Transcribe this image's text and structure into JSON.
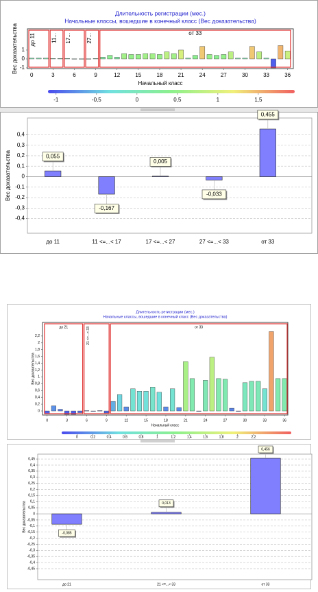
{
  "chart_data": [
    {
      "type": "bar",
      "title": "Длительность регистрации (мес.)",
      "subtitle": "Начальные классы, вошедшие в конечный класс (Вес доказательства)",
      "xlabel": "Начальный класс",
      "ylabel": "Вес доказательства",
      "x": [
        0,
        1,
        2,
        3,
        4,
        5,
        6,
        7,
        8,
        9,
        10,
        11,
        12,
        13,
        14,
        15,
        16,
        17,
        18,
        19,
        20,
        21,
        22,
        23,
        24,
        25,
        26,
        27,
        28,
        29,
        30,
        31,
        32,
        33,
        34,
        35,
        36
      ],
      "values": [
        0.1,
        0.1,
        0.1,
        0.05,
        0.05,
        0.05,
        0.02,
        0.02,
        0.02,
        0.05,
        0.2,
        0.4,
        0.2,
        0.6,
        0.5,
        0.5,
        0.6,
        0.6,
        0.5,
        0.8,
        0.6,
        1.0,
        0.1,
        0.4,
        1.4,
        0.5,
        0.4,
        0.5,
        0.8,
        0.1,
        0.1,
        1.4,
        0.8,
        0.1,
        -1.0,
        1.5,
        0.9
      ],
      "xlim": [
        -0.6,
        36.8
      ],
      "xticks": [
        0,
        3,
        6,
        9,
        12,
        15,
        18,
        21,
        24,
        27,
        30,
        33,
        36
      ],
      "ylim": [
        -1.08,
        3.38
      ],
      "yticks": [
        -1,
        0,
        1
      ],
      "grid": false,
      "colorscale": [
        "#4a4aee",
        "#70e0e0",
        "#8cf08c",
        "#f0f07a",
        "#f06060"
      ],
      "colorbar": {
        "lim": [
          -1.1,
          1.95
        ],
        "ticks": [
          -1,
          {
            "value": -0.5,
            "label": "-0,5"
          },
          0,
          {
            "value": 0.5,
            "label": "0,5"
          },
          1,
          {
            "value": 1.5,
            "label": "1,5"
          }
        ]
      },
      "groups": [
        {
          "label": "до 11",
          "range": [
            -0.5,
            2.5
          ]
        },
        {
          "label": "11...",
          "range": [
            2.5,
            4.5
          ]
        },
        {
          "label": "17...",
          "range": [
            4.5,
            7.5
          ]
        },
        {
          "label": "27...",
          "range": [
            7.5,
            9.5
          ]
        },
        {
          "label": "от 33",
          "range": [
            9.5,
            36.5
          ]
        }
      ]
    },
    {
      "type": "bar",
      "ylabel": "Вес доказательства",
      "categories": [
        "до 11",
        "11 <=...< 17",
        "17 <=...< 27",
        "27 <=...< 33",
        "от 33"
      ],
      "values": [
        0.055,
        -0.167,
        0.005,
        -0.033,
        0.455
      ],
      "value_labels": [
        "0,055",
        "-0,167",
        "0,005",
        "-0,033",
        "0,455"
      ],
      "color": "#8080ff",
      "ylim": [
        -0.54,
        0.56
      ],
      "yticks": [
        {
          "value": 0.4,
          "label": "0,4"
        },
        {
          "value": 0.3,
          "label": "0,3"
        },
        {
          "value": 0.2,
          "label": "0,2"
        },
        {
          "value": 0.1,
          "label": "0,1"
        },
        0,
        {
          "value": -0.1,
          "label": "-0,1"
        },
        {
          "value": -0.2,
          "label": "-0,2"
        },
        {
          "value": -0.3,
          "label": "-0,3"
        },
        {
          "value": -0.4,
          "label": "-0,4"
        }
      ],
      "grid": true
    },
    {
      "type": "bar",
      "title": "Длительность регистрации (мес.)",
      "subtitle": "Начальные классы, вошедшие в конечный класс (Вес доказательства)",
      "xlabel": "Начальный класс",
      "ylabel": "Вес доказательства",
      "x": [
        0,
        1,
        2,
        3,
        4,
        5,
        6,
        7,
        8,
        9,
        10,
        11,
        12,
        13,
        14,
        15,
        16,
        17,
        18,
        19,
        20,
        21,
        22,
        23,
        24,
        25,
        26,
        27,
        28,
        29,
        30,
        31,
        32,
        33,
        34,
        35,
        36
      ],
      "values": [
        -0.08,
        0.15,
        0.05,
        -0.1,
        -0.1,
        -0.05,
        0.01,
        0.0,
        0.01,
        -0.06,
        0.28,
        0.48,
        0.12,
        0.65,
        0.58,
        0.58,
        0.7,
        0.55,
        0.12,
        0.65,
        0.1,
        1.45,
        0.95,
        0.0,
        0.9,
        1.58,
        0.95,
        0.93,
        0.08,
        0.0,
        0.83,
        0.87,
        0.87,
        0.65,
        2.33,
        0.95,
        0.95
      ],
      "xlim": [
        -0.7,
        36.5
      ],
      "xticks": [
        0,
        3,
        6,
        9,
        12,
        15,
        18,
        21,
        24,
        27,
        30,
        33,
        36
      ],
      "ylim": [
        -0.12,
        2.6
      ],
      "yticks": [
        0,
        {
          "value": 0.2,
          "label": "0,2"
        },
        {
          "value": 0.4,
          "label": "0,4"
        },
        {
          "value": 0.6,
          "label": "0,6"
        },
        {
          "value": 0.8,
          "label": "0,8"
        },
        1,
        {
          "value": 1.2,
          "label": "1,2"
        },
        {
          "value": 1.4,
          "label": "1,4"
        },
        {
          "value": 1.6,
          "label": "1,6"
        },
        {
          "value": 1.8,
          "label": "1,8"
        },
        2,
        {
          "value": 2.2,
          "label": "2,2"
        }
      ],
      "grid": false,
      "colorscale": [
        "#4a4aee",
        "#70e0e0",
        "#8cf08c",
        "#f0f07a",
        "#f06060"
      ],
      "colorbar": {
        "lim": [
          -0.19,
          2.67
        ],
        "ticks": [
          0,
          {
            "value": 0.2,
            "label": "0,2"
          },
          {
            "value": 0.4,
            "label": "0,4"
          },
          {
            "value": 0.6,
            "label": "0,6"
          },
          {
            "value": 0.8,
            "label": "0,8"
          },
          1,
          {
            "value": 1.2,
            "label": "1,2"
          },
          {
            "value": 1.4,
            "label": "1,4"
          },
          {
            "value": 1.6,
            "label": "1,6"
          },
          {
            "value": 1.8,
            "label": "1,8"
          },
          2,
          {
            "value": 2.2,
            "label": "2,2"
          }
        ]
      },
      "groups": [
        {
          "label": "до 21",
          "range": [
            -0.5,
            5.5
          ]
        },
        {
          "label": "21 <=...< 33",
          "range": [
            5.5,
            9.5
          ]
        },
        {
          "label": "от 33",
          "range": [
            9.5,
            36.5
          ]
        }
      ]
    },
    {
      "type": "bar",
      "ylabel": "Вес доказательства",
      "categories": [
        "до 21",
        "21 <=...< 33",
        "от 33"
      ],
      "values": [
        -0.085,
        0.013,
        0.456
      ],
      "value_labels": [
        "-0,085",
        "0,013",
        "0,456"
      ],
      "color": "#8080ff",
      "ylim": [
        -0.54,
        0.49
      ],
      "yticks": [
        {
          "value": 0.45,
          "label": "0,45"
        },
        {
          "value": 0.4,
          "label": "0,4"
        },
        {
          "value": 0.35,
          "label": "0,35"
        },
        {
          "value": 0.3,
          "label": "0,3"
        },
        {
          "value": 0.25,
          "label": "0,25"
        },
        {
          "value": 0.2,
          "label": "0,2"
        },
        {
          "value": 0.15,
          "label": "0,15"
        },
        {
          "value": 0.1,
          "label": "0,1"
        },
        {
          "value": 0.05,
          "label": "0,05"
        },
        0,
        {
          "value": -0.05,
          "label": "-0,05"
        },
        {
          "value": -0.1,
          "label": "-0,1"
        },
        {
          "value": -0.15,
          "label": "-0,15"
        },
        {
          "value": -0.2,
          "label": "-0,2"
        },
        {
          "value": -0.25,
          "label": "-0,25"
        },
        {
          "value": -0.3,
          "label": "-0,3"
        },
        {
          "value": -0.35,
          "label": "-0,35"
        },
        {
          "value": -0.4,
          "label": "-0,4"
        },
        {
          "value": -0.45,
          "label": "-0,45"
        }
      ],
      "grid": true
    }
  ]
}
